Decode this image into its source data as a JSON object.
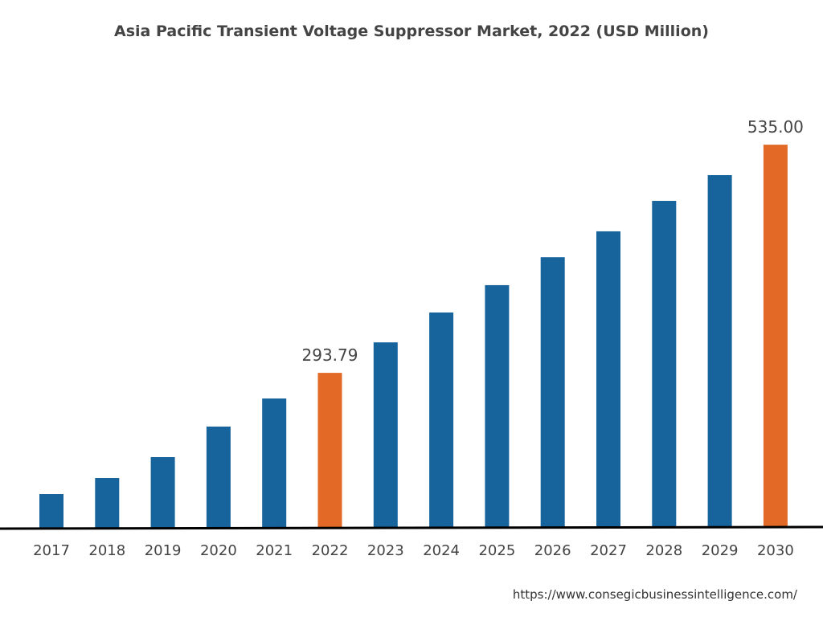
{
  "chart_data": {
    "type": "bar",
    "title": "Asia Pacific Transient Voltage Suppressor Market, 2022 (USD Million)",
    "xlabel": "",
    "ylabel": "",
    "categories": [
      "2017",
      "2018",
      "2019",
      "2020",
      "2021",
      "2022",
      "2023",
      "2024",
      "2025",
      "2026",
      "2027",
      "2028",
      "2029",
      "2030"
    ],
    "values": [
      165.6,
      182.6,
      204.7,
      237.0,
      266.7,
      293.79,
      326.0,
      357.6,
      386.5,
      416.0,
      443.4,
      475.6,
      502.8,
      535.0
    ],
    "data_labels": {
      "2022": "293.79",
      "2030": "535.00"
    },
    "highlight": [
      "2022",
      "2030"
    ],
    "ylim": [
      130,
      560
    ],
    "grid": false,
    "colors": {
      "bar": "#17639c",
      "highlight": "#e36a26",
      "axis": "#000000"
    }
  },
  "source": "https://www.consegicbusinessintelligence.com/"
}
